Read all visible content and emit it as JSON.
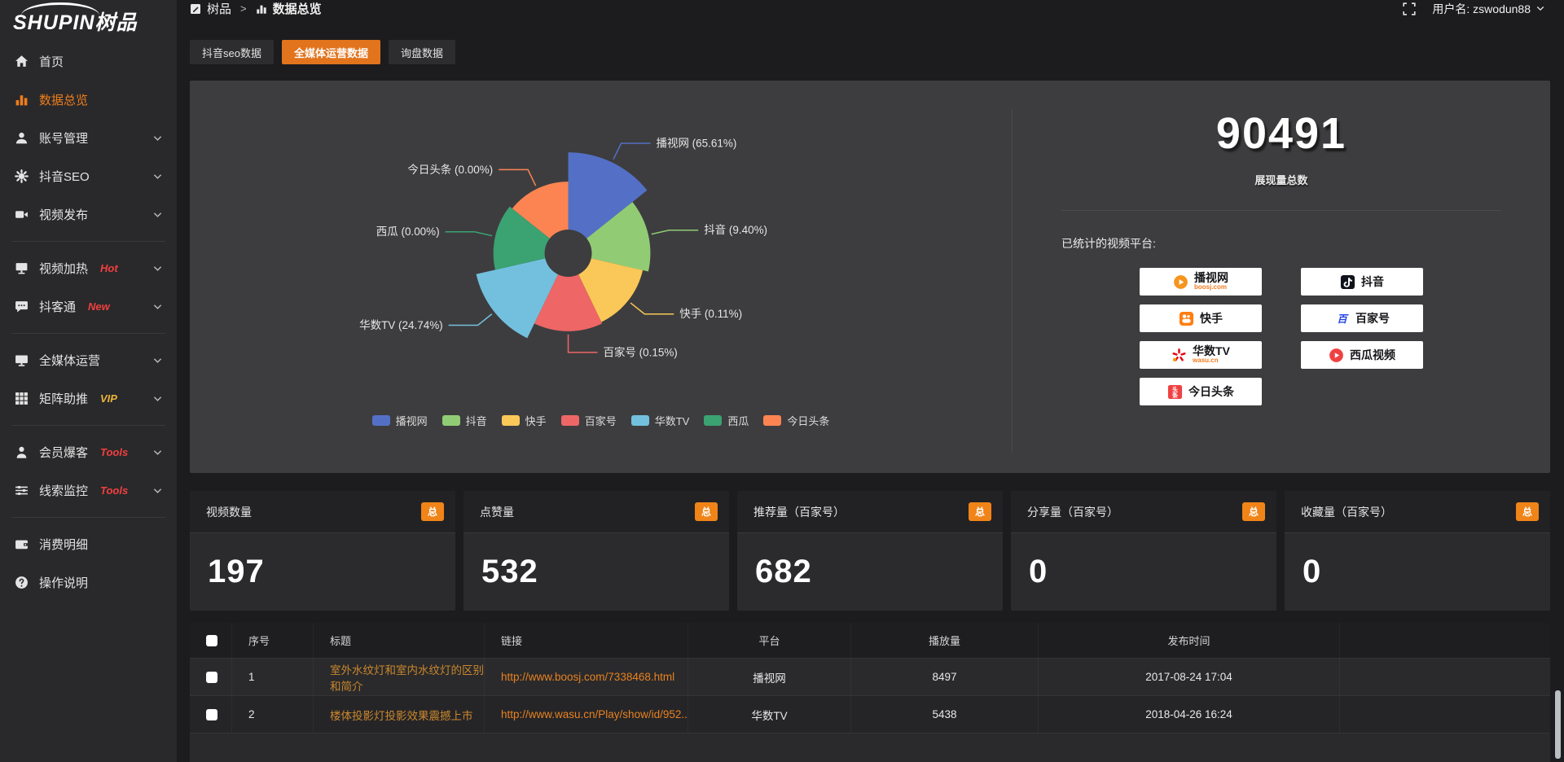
{
  "topbar": {
    "logo": "SHUPIN树品",
    "breadcrumb": {
      "root": "树品",
      "sep": ">",
      "current": "数据总览"
    },
    "username": "用户名: zswodun88"
  },
  "sidebar": {
    "items": [
      {
        "label": "首页",
        "icon": "home-icon",
        "active": false
      },
      {
        "label": "数据总览",
        "icon": "bar-chart-icon",
        "active": true
      },
      {
        "label": "账号管理",
        "icon": "user-icon",
        "chevron": true
      },
      {
        "label": "抖音SEO",
        "icon": "gear-icon",
        "chevron": true
      },
      {
        "label": "视频发布",
        "icon": "video-camera-icon",
        "chevron": true
      },
      {
        "label": "视频加热",
        "badge": "Hot",
        "badge_color": "#f33f3f",
        "icon": "billboard-icon",
        "chevron": true
      },
      {
        "label": "抖客通",
        "badge": "New",
        "badge_color": "#f33f3f",
        "icon": "chat-icon",
        "chevron": true
      },
      {
        "label": "全媒体运营",
        "icon": "monitor-icon",
        "chevron": true
      },
      {
        "label": "矩阵助推",
        "badge": "VIP",
        "badge_color": "#e9b43c",
        "icon": "grid-icon",
        "chevron": true
      },
      {
        "label": "会员爆客",
        "badge": "Tools",
        "badge_color": "#f33f3f",
        "icon": "person-icon",
        "chevron": true
      },
      {
        "label": "线索监控",
        "badge": "Tools",
        "badge_color": "#f33f3f",
        "icon": "sliders-icon",
        "chevron": true
      },
      {
        "label": "消费明细",
        "icon": "wallet-icon"
      },
      {
        "label": "操作说明",
        "icon": "help-icon"
      }
    ]
  },
  "tabs": [
    {
      "label": "抖音seo数据",
      "active": false
    },
    {
      "label": "全媒体运营数据",
      "active": true
    },
    {
      "label": "询盘数据",
      "active": false
    }
  ],
  "chart_data": {
    "type": "pie",
    "style": "nightingale-rose",
    "unit": "percent-of-total-impressions",
    "start_angle_deg": 0,
    "direction": "clockwise",
    "inner_radius": 29,
    "legend_position": "bottom",
    "slices": [
      {
        "name": "播视网",
        "value": 65.61,
        "label": "播视网 (65.61%)",
        "color": "#5470c6",
        "display_r": 124
      },
      {
        "name": "抖音",
        "value": 9.4,
        "label": "抖音 (9.40%)",
        "color": "#91cc75",
        "display_r": 101
      },
      {
        "name": "快手",
        "value": 0.11,
        "label": "快手 (0.11%)",
        "color": "#fac858",
        "display_r": 94
      },
      {
        "name": "百家号",
        "value": 0.15,
        "label": "百家号 (0.15%)",
        "color": "#ee6666",
        "display_r": 96
      },
      {
        "name": "华数TV",
        "value": 24.74,
        "label": "华数TV (24.74%)",
        "color": "#73c0de",
        "display_r": 116
      },
      {
        "name": "西瓜",
        "value": 0.0,
        "label": "西瓜 (0.00%)",
        "color": "#3ba272",
        "display_r": 92
      },
      {
        "name": "今日头条",
        "value": 0.0,
        "label": "今日头条 (0.00%)",
        "color": "#fc8452",
        "display_r": 88
      }
    ]
  },
  "summary": {
    "total": "90491",
    "total_label": "展现量总数",
    "platforms_title": "已统计的视频平台:",
    "platforms": [
      {
        "name": "播视网",
        "sub": "boosj.com"
      },
      {
        "name": "抖音",
        "sub": ""
      },
      {
        "name": "快手",
        "sub": ""
      },
      {
        "name": "百家号",
        "sub": ""
      },
      {
        "name": "华数TV",
        "sub": "wasu.cn"
      },
      {
        "name": "西瓜视频",
        "sub": ""
      },
      {
        "name": "今日头条",
        "sub": ""
      }
    ]
  },
  "stats_cards": [
    {
      "title": "视频数量",
      "badge": "总",
      "value": "197"
    },
    {
      "title": "点赞量",
      "badge": "总",
      "value": "532"
    },
    {
      "title": "推荐量（百家号）",
      "badge": "总",
      "value": "682"
    },
    {
      "title": "分享量（百家号）",
      "badge": "总",
      "value": "0"
    },
    {
      "title": "收藏量（百家号）",
      "badge": "总",
      "value": "0"
    }
  ],
  "table": {
    "headers": [
      "序号",
      "标题",
      "链接",
      "平台",
      "播放量",
      "发布时间"
    ],
    "rows": [
      {
        "no": "1",
        "title": "室外水纹灯和室内水纹灯的区别和简介",
        "link": "http://www.boosj.com/7338468.html",
        "platform": "播视网",
        "views": "8497",
        "time": "2017-08-24 17:04"
      },
      {
        "no": "2",
        "title": "楼体投影灯投影效果震撼上市",
        "link": "http://www.wasu.cn/Play/show/id/952...",
        "platform": "华数TV",
        "views": "5438",
        "time": "2018-04-26 16:24"
      }
    ]
  },
  "colors": {
    "accent": "#e2741d",
    "badge": "#f08418",
    "sidebar_active": "#ee7e1b"
  }
}
